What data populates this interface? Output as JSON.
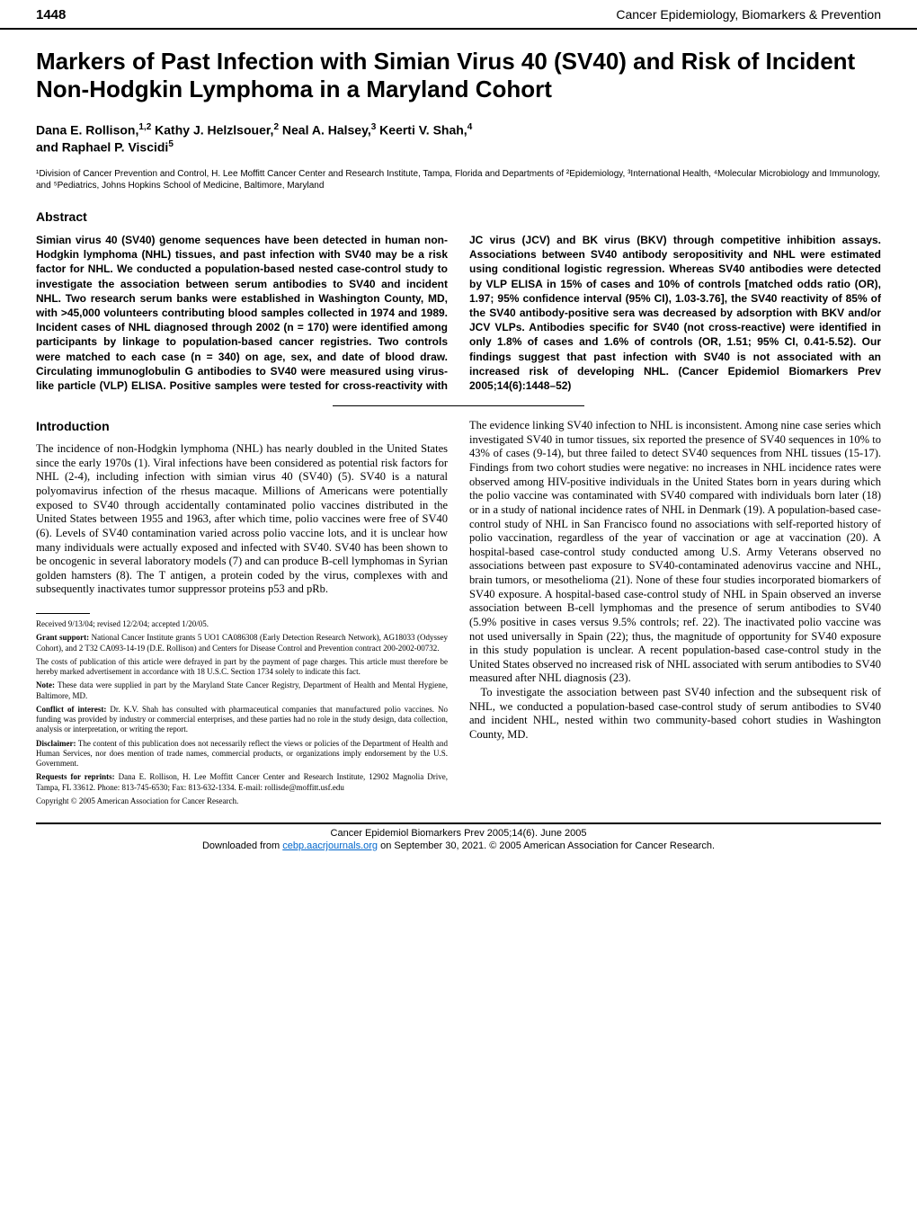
{
  "page_number": "1448",
  "journal_name": "Cancer Epidemiology, Biomarkers & Prevention",
  "title": "Markers of Past Infection with Simian Virus 40 (SV40) and Risk of Incident Non-Hodgkin Lymphoma in a Maryland Cohort",
  "authors_line1": "Dana E. Rollison,",
  "authors_sup1": "1,2",
  "authors_mid1": " Kathy J. Helzlsouer,",
  "authors_sup2": "2",
  "authors_mid2": " Neal A. Halsey,",
  "authors_sup3": "3",
  "authors_mid3": " Keerti V. Shah,",
  "authors_sup4": "4",
  "authors_line2": "and Raphael P. Viscidi",
  "authors_sup5": "5",
  "affiliations": "¹Division of Cancer Prevention and Control, H. Lee Moffitt Cancer Center and Research Institute, Tampa, Florida and Departments of ²Epidemiology, ³International Health, ⁴Molecular Microbiology and Immunology, and ⁵Pediatrics, Johns Hopkins School of Medicine, Baltimore, Maryland",
  "abstract_heading": "Abstract",
  "abstract_text": "Simian virus 40 (SV40) genome sequences have been detected in human non-Hodgkin lymphoma (NHL) tissues, and past infection with SV40 may be a risk factor for NHL. We conducted a population-based nested case-control study to investigate the association between serum antibodies to SV40 and incident NHL. Two research serum banks were established in Washington County, MD, with >45,000 volunteers contributing blood samples collected in 1974 and 1989. Incident cases of NHL diagnosed through 2002 (n = 170) were identified among participants by linkage to population-based cancer registries. Two controls were matched to each case (n = 340) on age, sex, and date of blood draw. Circulating immunoglobulin G antibodies to SV40 were measured using virus-like particle (VLP) ELISA. Positive samples were tested for cross-reactivity with JC virus (JCV) and BK virus (BKV) through competitive inhibition assays. Associations between SV40 antibody seropositivity and NHL were estimated using conditional logistic regression. Whereas SV40 antibodies were detected by VLP ELISA in 15% of cases and 10% of controls [matched odds ratio (OR), 1.97; 95% confidence interval (95% CI), 1.03-3.76], the SV40 reactivity of 85% of the SV40 antibody-positive sera was decreased by adsorption with BKV and/or JCV VLPs. Antibodies specific for SV40 (not cross-reactive) were identified in only 1.8% of cases and 1.6% of controls (OR, 1.51; 95% CI, 0.41-5.52). Our findings suggest that past infection with SV40 is not associated with an increased risk of developing NHL. (Cancer Epidemiol Biomarkers Prev 2005;14(6):1448–52)",
  "intro_heading": "Introduction",
  "intro_p1": "The incidence of non-Hodgkin lymphoma (NHL) has nearly doubled in the United States since the early 1970s (1). Viral infections have been considered as potential risk factors for NHL (2-4), including infection with simian virus 40 (SV40) (5). SV40 is a natural polyomavirus infection of the rhesus macaque. Millions of Americans were potentially exposed to SV40 through accidentally contaminated polio vaccines distributed in the United States between 1955 and 1963, after which time, polio vaccines were free of SV40 (6). Levels of SV40 contamination varied across polio vaccine lots, and it is unclear how many individuals were actually exposed and infected with SV40. SV40 has been shown to be oncogenic in several laboratory models (7) and can produce B-cell lymphomas in Syrian golden hamsters (8). The T antigen, a protein coded by the virus, complexes with and subsequently inactivates tumor suppressor proteins p53 and pRb.",
  "intro_p2": "The evidence linking SV40 infection to NHL is inconsistent. Among nine case series which investigated SV40 in tumor tissues, six reported the presence of SV40 sequences in 10% to 43% of cases (9-14), but three failed to detect SV40 sequences from NHL tissues (15-17). Findings from two cohort studies were negative: no increases in NHL incidence rates were observed among HIV-positive individuals in the United States born in years during which the polio vaccine was contaminated with SV40 compared with individuals born later (18) or in a study of national incidence rates of NHL in Denmark (19). A population-based case-control study of NHL in San Francisco found no associations with self-reported history of polio vaccination, regardless of the year of vaccination or age at vaccination (20). A hospital-based case-control study conducted among U.S. Army Veterans observed no associations between past exposure to SV40-contaminated adenovirus vaccine and NHL, brain tumors, or mesothelioma (21). None of these four studies incorporated biomarkers of SV40 exposure. A hospital-based case-control study of NHL in Spain observed an inverse association between B-cell lymphomas and the presence of serum antibodies to SV40 (5.9% positive in cases versus 9.5% controls; ref. 22). The inactivated polio vaccine was not used universally in Spain (22); thus, the magnitude of opportunity for SV40 exposure in this study population is unclear. A recent population-based case-control study in the United States observed no increased risk of NHL associated with serum antibodies to SV40 measured after NHL diagnosis (23).",
  "intro_p3": "To investigate the association between past SV40 infection and the subsequent risk of NHL, we conducted a population-based case-control study of serum antibodies to SV40 and incident NHL, nested within two community-based cohort studies in Washington County, MD.",
  "footnotes": {
    "received": "Received 9/13/04; revised 12/2/04; accepted 1/20/05.",
    "grant_lead": "Grant support:",
    "grant": " National Cancer Institute grants 5 UO1 CA086308 (Early Detection Research Network), AG18033 (Odyssey Cohort), and 2 T32 CA093-14-19 (D.E. Rollison) and Centers for Disease Control and Prevention contract 200-2002-00732.",
    "costs": "The costs of publication of this article were defrayed in part by the payment of page charges. This article must therefore be hereby marked advertisement in accordance with 18 U.S.C. Section 1734 solely to indicate this fact.",
    "note_lead": "Note:",
    "note": " These data were supplied in part by the Maryland State Cancer Registry, Department of Health and Mental Hygiene, Baltimore, MD.",
    "conflict_lead": "Conflict of interest:",
    "conflict": " Dr. K.V. Shah has consulted with pharmaceutical companies that manufactured polio vaccines. No funding was provided by industry or commercial enterprises, and these parties had no role in the study design, data collection, analysis or interpretation, or writing the report.",
    "disclaimer_lead": "Disclaimer:",
    "disclaimer": " The content of this publication does not necessarily reflect the views or policies of the Department of Health and Human Services, nor does mention of trade names, commercial products, or organizations imply endorsement by the U.S. Government.",
    "reprints_lead": "Requests for reprints:",
    "reprints": " Dana E. Rollison, H. Lee Moffitt Cancer Center and Research Institute, 12902 Magnolia Drive, Tampa, FL 33612. Phone: 813-745-6530; Fax: 813-632-1334. E-mail: rollisde@moffitt.usf.edu",
    "copyright": "Copyright © 2005 American Association for Cancer Research."
  },
  "footer": {
    "line1": "Cancer Epidemiol Biomarkers Prev 2005;14(6). June 2005",
    "dl_pre": "Downloaded from ",
    "dl_link": "cebp.aacrjournals.org",
    "dl_post": " on September 30, 2021. © 2005 American Association for Cancer Research."
  }
}
